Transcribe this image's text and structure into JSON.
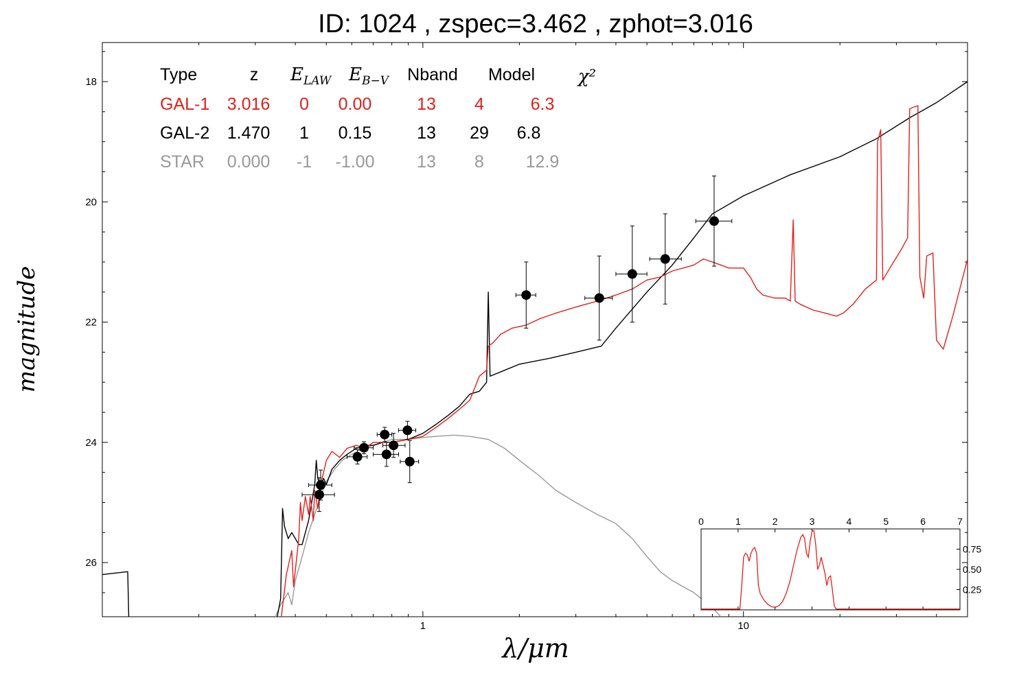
{
  "title": "ID:  1024  , zspec=3.462 , zphot=3.016",
  "colors": {
    "gal1": "#e0201b",
    "gal2": "#000000",
    "star": "#999999",
    "axis": "#000000"
  },
  "chart_data": {
    "type": "line",
    "xlabel": "λ/μm",
    "ylabel": "magnitude",
    "xscale": "log",
    "xlim": [
      0.1,
      50
    ],
    "ylim": [
      26.9,
      17.35
    ],
    "x_tick_labels": [
      {
        "v": 1,
        "label": "1"
      },
      {
        "v": 10,
        "label": "10"
      }
    ],
    "y_ticks": [
      18,
      20,
      22,
      24,
      26
    ],
    "grid": false,
    "table": {
      "headers": [
        "Type",
        "z",
        "E_LAW",
        "E_B-V",
        "Nband",
        "Model",
        "χ²"
      ],
      "rows": [
        {
          "type": "GAL-1",
          "z": "3.016",
          "elaw": "0",
          "ebv": "0.00",
          "nband": "13",
          "model": "4",
          "chi2": "6.3",
          "color": "#e0201b"
        },
        {
          "type": "GAL-2",
          "z": "1.470",
          "elaw": "1",
          "ebv": "0.15",
          "nband": "13",
          "model": "29",
          "chi2": "6.8",
          "color": "#000000"
        },
        {
          "type": "STAR",
          "z": "0.000",
          "elaw": "-1",
          "ebv": "-1.00",
          "nband": "13",
          "model": "8",
          "chi2": "12.9",
          "color": "#999999"
        }
      ]
    },
    "series": [
      {
        "key": "gal1",
        "points": [
          [
            0.36,
            27.0
          ],
          [
            0.375,
            26.2
          ],
          [
            0.39,
            25.8
          ],
          [
            0.395,
            26.4
          ],
          [
            0.41,
            25.6
          ],
          [
            0.415,
            25.0
          ],
          [
            0.42,
            25.3
          ],
          [
            0.43,
            24.9
          ],
          [
            0.44,
            25.2
          ],
          [
            0.445,
            24.9
          ],
          [
            0.455,
            25.3
          ],
          [
            0.46,
            24.8
          ],
          [
            0.47,
            25.1
          ],
          [
            0.48,
            24.7
          ],
          [
            0.49,
            24.5
          ],
          [
            0.5,
            24.3
          ],
          [
            0.52,
            24.15
          ],
          [
            0.55,
            24.25
          ],
          [
            0.58,
            24.1
          ],
          [
            0.62,
            24.05
          ],
          [
            0.66,
            24.1
          ],
          [
            0.7,
            24.0
          ],
          [
            0.75,
            24.0
          ],
          [
            0.8,
            24.0
          ],
          [
            0.9,
            23.95
          ],
          [
            1.0,
            23.9
          ],
          [
            1.1,
            23.75
          ],
          [
            1.2,
            23.6
          ],
          [
            1.3,
            23.45
          ],
          [
            1.4,
            23.3
          ],
          [
            1.5,
            22.9
          ],
          [
            1.58,
            22.8
          ],
          [
            1.6,
            22.4
          ],
          [
            1.65,
            22.35
          ],
          [
            1.75,
            22.2
          ],
          [
            1.9,
            22.1
          ],
          [
            2.1,
            22.05
          ],
          [
            2.3,
            21.95
          ],
          [
            2.6,
            21.85
          ],
          [
            3.0,
            21.75
          ],
          [
            3.5,
            21.65
          ],
          [
            4.0,
            21.55
          ],
          [
            4.5,
            21.45
          ],
          [
            5.0,
            21.3
          ],
          [
            5.5,
            21.25
          ],
          [
            6.0,
            21.15
          ],
          [
            6.5,
            21.1
          ],
          [
            7.0,
            21.05
          ],
          [
            7.5,
            20.95
          ],
          [
            8.0,
            21.0
          ],
          [
            8.5,
            21.05
          ],
          [
            9.0,
            21.1
          ],
          [
            10.0,
            21.1
          ],
          [
            10.5,
            21.25
          ],
          [
            11.0,
            21.45
          ],
          [
            11.5,
            21.55
          ],
          [
            12.5,
            21.6
          ],
          [
            13.5,
            21.6
          ],
          [
            14.0,
            21.65
          ],
          [
            14.3,
            20.3
          ],
          [
            14.5,
            21.65
          ],
          [
            15,
            21.7
          ],
          [
            16.5,
            21.8
          ],
          [
            18,
            21.85
          ],
          [
            19.5,
            21.9
          ],
          [
            20.5,
            21.85
          ],
          [
            22,
            21.7
          ],
          [
            24,
            21.45
          ],
          [
            26,
            21.3
          ],
          [
            26.2,
            19.0
          ],
          [
            26.8,
            18.8
          ],
          [
            27.2,
            21.3
          ],
          [
            29,
            21.05
          ],
          [
            31,
            20.8
          ],
          [
            32.5,
            20.6
          ],
          [
            33,
            18.45
          ],
          [
            35,
            18.4
          ],
          [
            35.5,
            21.25
          ],
          [
            36.5,
            21.6
          ],
          [
            37.3,
            20.9
          ],
          [
            39,
            20.85
          ],
          [
            40,
            22.3
          ],
          [
            42,
            22.45
          ],
          [
            45,
            21.9
          ],
          [
            50,
            20.95
          ]
        ]
      },
      {
        "key": "gal2",
        "points": [
          [
            0.1,
            26.2
          ],
          [
            0.12,
            26.15
          ],
          [
            0.121,
            26.95
          ],
          [
            0.35,
            26.95
          ],
          [
            0.36,
            26.6
          ],
          [
            0.365,
            25.1
          ],
          [
            0.37,
            25.4
          ],
          [
            0.38,
            25.6
          ],
          [
            0.39,
            25.5
          ],
          [
            0.4,
            25.6
          ],
          [
            0.41,
            25.7
          ],
          [
            0.42,
            25.7
          ],
          [
            0.43,
            25.5
          ],
          [
            0.44,
            25.3
          ],
          [
            0.45,
            25.0
          ],
          [
            0.46,
            24.7
          ],
          [
            0.465,
            24.3
          ],
          [
            0.47,
            24.6
          ],
          [
            0.48,
            24.75
          ],
          [
            0.49,
            24.6
          ],
          [
            0.5,
            24.7
          ],
          [
            0.52,
            24.45
          ],
          [
            0.55,
            24.3
          ],
          [
            0.58,
            24.2
          ],
          [
            0.62,
            24.1
          ],
          [
            0.66,
            24.05
          ],
          [
            0.7,
            24.05
          ],
          [
            0.75,
            24.0
          ],
          [
            0.8,
            24.0
          ],
          [
            0.9,
            23.95
          ],
          [
            1.0,
            23.85
          ],
          [
            1.1,
            23.7
          ],
          [
            1.2,
            23.55
          ],
          [
            1.3,
            23.4
          ],
          [
            1.4,
            23.2
          ],
          [
            1.5,
            23.15
          ],
          [
            1.58,
            23.0
          ],
          [
            1.6,
            21.5
          ],
          [
            1.62,
            22.9
          ],
          [
            1.8,
            22.8
          ],
          [
            2.0,
            22.7
          ],
          [
            2.5,
            22.6
          ],
          [
            3.0,
            22.5
          ],
          [
            3.6,
            22.4
          ],
          [
            4.0,
            22.1
          ],
          [
            5.0,
            21.5
          ],
          [
            6.0,
            21.05
          ],
          [
            7.0,
            20.6
          ],
          [
            8.0,
            20.2
          ],
          [
            10,
            19.9
          ],
          [
            14,
            19.55
          ],
          [
            20,
            19.25
          ],
          [
            26,
            18.95
          ],
          [
            33,
            18.6
          ],
          [
            40,
            18.35
          ],
          [
            50,
            18.0
          ]
        ]
      },
      {
        "key": "star",
        "points": [
          [
            0.34,
            27.0
          ],
          [
            0.36,
            26.7
          ],
          [
            0.38,
            26.5
          ],
          [
            0.39,
            26.7
          ],
          [
            0.4,
            26.3
          ],
          [
            0.42,
            25.9
          ],
          [
            0.44,
            25.5
          ],
          [
            0.46,
            25.2
          ],
          [
            0.48,
            24.9
          ],
          [
            0.5,
            24.65
          ],
          [
            0.53,
            24.45
          ],
          [
            0.56,
            24.3
          ],
          [
            0.6,
            24.2
          ],
          [
            0.65,
            24.1
          ],
          [
            0.7,
            24.05
          ],
          [
            0.75,
            24.0
          ],
          [
            0.8,
            23.95
          ],
          [
            0.9,
            23.95
          ],
          [
            1.0,
            23.92
          ],
          [
            1.1,
            23.9
          ],
          [
            1.25,
            23.88
          ],
          [
            1.4,
            23.9
          ],
          [
            1.6,
            23.95
          ],
          [
            1.8,
            24.1
          ],
          [
            2.0,
            24.3
          ],
          [
            2.3,
            24.55
          ],
          [
            2.6,
            24.8
          ],
          [
            3.0,
            25.0
          ],
          [
            3.5,
            25.2
          ],
          [
            4.0,
            25.35
          ],
          [
            4.5,
            25.6
          ],
          [
            5.0,
            25.9
          ],
          [
            5.5,
            26.15
          ],
          [
            6.0,
            26.3
          ],
          [
            7.0,
            26.5
          ],
          [
            8.0,
            26.75
          ],
          [
            8.5,
            26.9
          ]
        ]
      }
    ],
    "observations": [
      {
        "x": 0.48,
        "y": 24.71,
        "xerr": [
          0.44,
          0.52
        ],
        "yerr": 0.25
      },
      {
        "x": 0.475,
        "y": 24.87,
        "xerr": [
          0.42,
          0.53
        ],
        "yerr": 0.28
      },
      {
        "x": 0.625,
        "y": 24.24,
        "xerr": [
          0.58,
          0.67
        ],
        "yerr": 0.12
      },
      {
        "x": 0.655,
        "y": 24.09,
        "xerr": [
          0.61,
          0.7
        ],
        "yerr": 0.1
      },
      {
        "x": 0.76,
        "y": 23.87,
        "xerr": [
          0.72,
          0.8
        ],
        "yerr": 0.12
      },
      {
        "x": 0.77,
        "y": 24.2,
        "xerr": [
          0.7,
          0.84
        ],
        "yerr": 0.2
      },
      {
        "x": 0.81,
        "y": 24.05,
        "xerr": [
          0.75,
          0.88
        ],
        "yerr": 0.2
      },
      {
        "x": 0.895,
        "y": 23.8,
        "xerr": [
          0.84,
          0.95
        ],
        "yerr": 0.15
      },
      {
        "x": 0.91,
        "y": 24.32,
        "xerr": [
          0.85,
          0.97
        ],
        "yerr": 0.35
      },
      {
        "x": 2.1,
        "y": 21.55,
        "xerr": [
          1.95,
          2.25
        ],
        "yerr": 0.55
      },
      {
        "x": 3.55,
        "y": 21.6,
        "xerr": [
          3.2,
          3.9
        ],
        "yerr": 0.7
      },
      {
        "x": 4.5,
        "y": 21.2,
        "xerr": [
          4.0,
          5.0
        ],
        "yerr": 0.8
      },
      {
        "x": 5.7,
        "y": 20.95,
        "xerr": [
          5.1,
          6.4
        ],
        "yerr": 0.75
      },
      {
        "x": 8.1,
        "y": 20.32,
        "xerr": [
          7.1,
          9.2
        ],
        "yerr": 0.75
      }
    ],
    "inset": {
      "xlim": [
        0,
        7
      ],
      "ylim": [
        0,
        1.0
      ],
      "x_ticks": [
        0,
        1,
        2,
        3,
        4,
        5,
        6,
        7
      ],
      "y_ticks": [
        {
          "v": 0.25,
          "label": "0.25"
        },
        {
          "v": 0.5,
          "label": "0.50"
        },
        {
          "v": 0.75,
          "label": "0.75"
        }
      ],
      "pdf": [
        [
          0,
          0.01
        ],
        [
          1.05,
          0.01
        ],
        [
          1.1,
          0.3
        ],
        [
          1.15,
          0.65
        ],
        [
          1.2,
          0.7
        ],
        [
          1.25,
          0.68
        ],
        [
          1.3,
          0.6
        ],
        [
          1.35,
          0.7
        ],
        [
          1.4,
          0.75
        ],
        [
          1.45,
          0.77
        ],
        [
          1.5,
          0.7
        ],
        [
          1.55,
          0.3
        ],
        [
          1.6,
          0.2
        ],
        [
          1.7,
          0.12
        ],
        [
          1.8,
          0.07
        ],
        [
          1.9,
          0.04
        ],
        [
          2.0,
          0.03
        ],
        [
          2.1,
          0.05
        ],
        [
          2.2,
          0.1
        ],
        [
          2.3,
          0.2
        ],
        [
          2.4,
          0.35
        ],
        [
          2.5,
          0.55
        ],
        [
          2.6,
          0.75
        ],
        [
          2.7,
          0.9
        ],
        [
          2.75,
          0.93
        ],
        [
          2.8,
          0.88
        ],
        [
          2.85,
          0.7
        ],
        [
          2.9,
          0.65
        ],
        [
          2.95,
          0.85
        ],
        [
          3.0,
          0.97
        ],
        [
          3.05,
          0.98
        ],
        [
          3.1,
          0.8
        ],
        [
          3.15,
          0.5
        ],
        [
          3.2,
          0.55
        ],
        [
          3.25,
          0.65
        ],
        [
          3.3,
          0.55
        ],
        [
          3.35,
          0.45
        ],
        [
          3.4,
          0.3
        ],
        [
          3.45,
          0.4
        ],
        [
          3.5,
          0.42
        ],
        [
          3.55,
          0.25
        ],
        [
          3.6,
          0.05
        ],
        [
          3.65,
          0.01
        ],
        [
          7,
          0.01
        ]
      ]
    }
  }
}
